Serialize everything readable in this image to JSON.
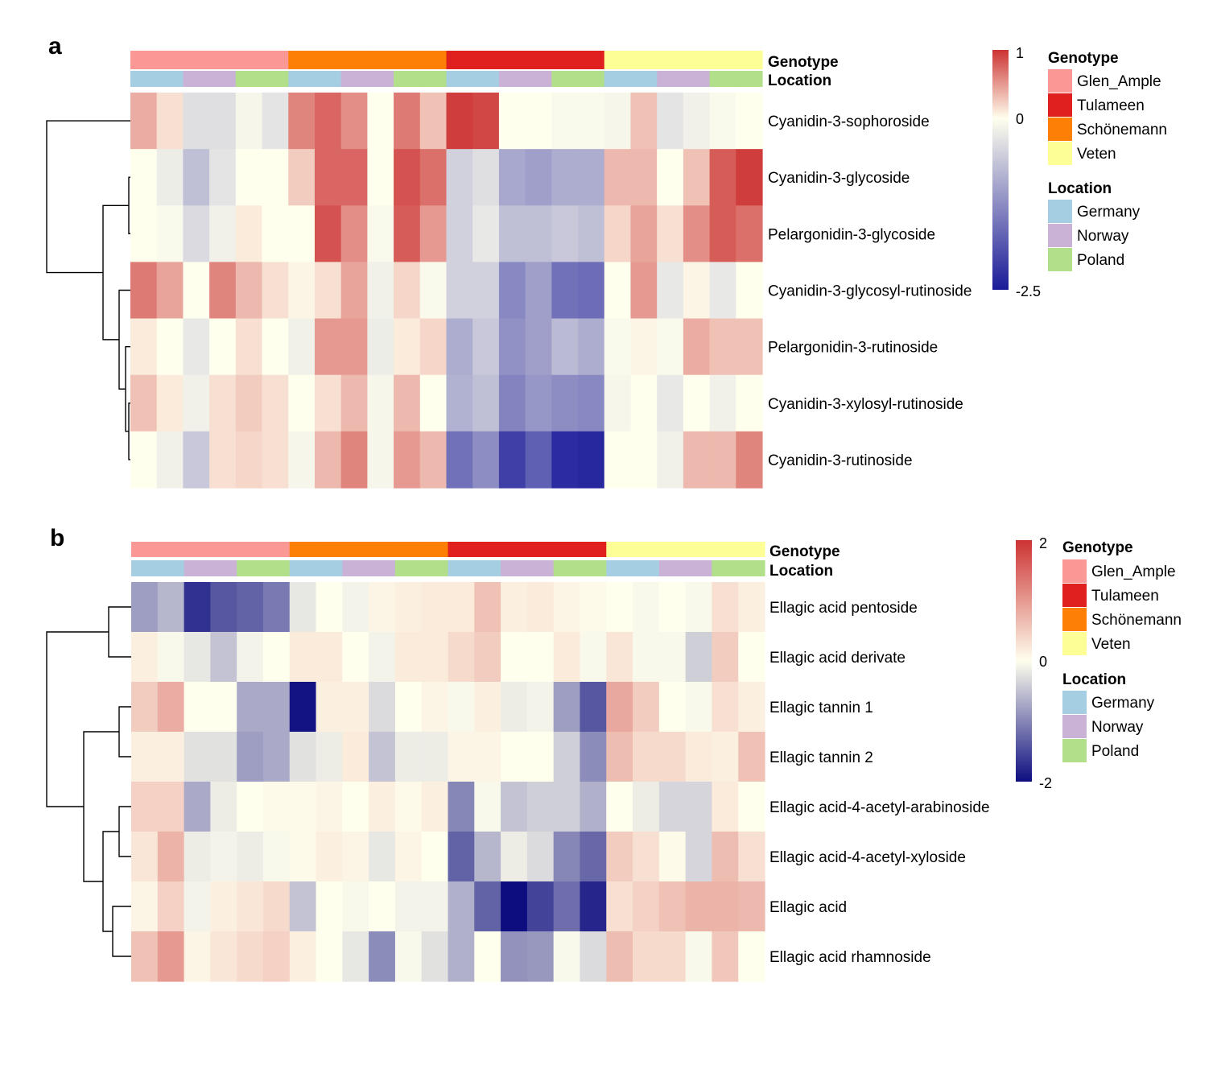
{
  "panels": [
    {
      "label": "a",
      "chart_data": {
        "type": "heatmap",
        "rows": [
          "Cyanidin-3-sophoroside",
          "Cyanidin-3-glycoside",
          "Pelargonidin-3-glycoside",
          "Cyanidin-3-glycosyl-rutinoside",
          "Pelargonidin-3-rutinoside",
          "Cyanidin-3-xylosyl-rutinoside",
          "Cyanidin-3-rutinoside"
        ],
        "column_genotype": [
          "Glen_Ample",
          "Glen_Ample",
          "Glen_Ample",
          "Glen_Ample",
          "Glen_Ample",
          "Glen_Ample",
          "Schönemann",
          "Schönemann",
          "Schönemann",
          "Schönemann",
          "Schönemann",
          "Schönemann",
          "Tulameen",
          "Tulameen",
          "Tulameen",
          "Tulameen",
          "Tulameen",
          "Tulameen",
          "Veten",
          "Veten",
          "Veten",
          "Veten",
          "Veten",
          "Veten"
        ],
        "column_location": [
          "Germany",
          "Germany",
          "Norway",
          "Norway",
          "Poland",
          "Poland",
          "Germany",
          "Germany",
          "Norway",
          "Norway",
          "Poland",
          "Poland",
          "Germany",
          "Germany",
          "Norway",
          "Norway",
          "Poland",
          "Poland",
          "Germany",
          "Germany",
          "Norway",
          "Norway",
          "Poland",
          "Poland"
        ],
        "values": [
          [
            0.4,
            0.15,
            -0.35,
            -0.35,
            -0.1,
            -0.3,
            0.6,
            0.75,
            0.55,
            0.0,
            0.65,
            0.3,
            0.95,
            0.9,
            0.0,
            0.0,
            -0.05,
            -0.05,
            -0.1,
            0.3,
            -0.3,
            -0.15,
            -0.05,
            0.0
          ],
          [
            0.0,
            -0.2,
            -0.7,
            -0.3,
            0.0,
            0.0,
            0.25,
            0.75,
            0.75,
            0.0,
            0.85,
            0.7,
            -0.5,
            -0.35,
            -0.95,
            -1.05,
            -0.9,
            -0.9,
            0.35,
            0.35,
            0.0,
            0.3,
            0.8,
            0.95
          ],
          [
            0.0,
            -0.05,
            -0.4,
            -0.15,
            0.1,
            0.0,
            0.0,
            0.85,
            0.55,
            -0.05,
            0.8,
            0.5,
            -0.5,
            -0.25,
            -0.7,
            -0.7,
            -0.6,
            -0.7,
            0.2,
            0.45,
            0.15,
            0.55,
            0.8,
            0.7
          ],
          [
            0.65,
            0.45,
            0.0,
            0.6,
            0.35,
            0.15,
            0.05,
            0.15,
            0.45,
            -0.15,
            0.2,
            -0.05,
            -0.5,
            -0.5,
            -1.3,
            -1.05,
            -1.55,
            -1.6,
            0.0,
            0.5,
            -0.25,
            0.05,
            -0.25,
            0.0
          ],
          [
            0.1,
            0.0,
            -0.25,
            0.0,
            0.15,
            0.0,
            -0.15,
            0.5,
            0.5,
            -0.2,
            0.1,
            0.2,
            -0.9,
            -0.6,
            -1.2,
            -1.05,
            -0.75,
            -0.9,
            -0.05,
            0.05,
            -0.05,
            0.4,
            0.3,
            0.3
          ],
          [
            0.3,
            0.1,
            -0.15,
            0.15,
            0.25,
            0.15,
            0.0,
            0.15,
            0.35,
            -0.1,
            0.35,
            0.0,
            -0.85,
            -0.7,
            -1.35,
            -1.15,
            -1.25,
            -1.3,
            -0.1,
            0.0,
            -0.25,
            0.0,
            -0.15,
            0.0
          ],
          [
            0.0,
            -0.15,
            -0.6,
            0.15,
            0.2,
            0.15,
            -0.1,
            0.35,
            0.6,
            -0.1,
            0.5,
            0.35,
            -1.55,
            -1.25,
            -2.1,
            -1.75,
            -2.3,
            -2.35,
            0.0,
            0.0,
            -0.15,
            0.35,
            0.35,
            0.6
          ]
        ],
        "scale": {
          "min": -2.5,
          "max": 1,
          "ticks": [
            1,
            0,
            -2.5
          ],
          "tick_labels": [
            "1",
            "0",
            "-2.5"
          ],
          "colors": [
            "#1a1a99",
            "#ffffee",
            "#cc3333"
          ]
        },
        "dendrogram_rows": true,
        "annotation_labels": [
          "Genotype",
          "Location"
        ]
      }
    },
    {
      "label": "b",
      "chart_data": {
        "type": "heatmap",
        "rows": [
          "Ellagic acid pentoside",
          "Ellagic acid derivate",
          "Ellagic tannin 1",
          "Ellagic tannin 2",
          "Ellagic acid-4-acetyl-arabinoside",
          "Ellagic acid-4-acetyl-xyloside",
          "Ellagic acid",
          "Ellagic acid rhamnoside"
        ],
        "column_genotype": [
          "Glen_Ample",
          "Glen_Ample",
          "Glen_Ample",
          "Glen_Ample",
          "Glen_Ample",
          "Glen_Ample",
          "Schönemann",
          "Schönemann",
          "Schönemann",
          "Schönemann",
          "Schönemann",
          "Schönemann",
          "Tulameen",
          "Tulameen",
          "Tulameen",
          "Tulameen",
          "Tulameen",
          "Tulameen",
          "Veten",
          "Veten",
          "Veten",
          "Veten",
          "Veten",
          "Veten"
        ],
        "column_location": [
          "Germany",
          "Germany",
          "Norway",
          "Norway",
          "Poland",
          "Poland",
          "Germany",
          "Germany",
          "Norway",
          "Norway",
          "Poland",
          "Poland",
          "Germany",
          "Germany",
          "Norway",
          "Norway",
          "Poland",
          "Poland",
          "Germany",
          "Germany",
          "Norway",
          "Norway",
          "Poland",
          "Poland"
        ],
        "values": [
          [
            -0.8,
            -0.6,
            -1.7,
            -1.4,
            -1.3,
            -1.1,
            -0.2,
            0.0,
            -0.1,
            0.1,
            0.15,
            0.2,
            0.2,
            0.6,
            0.15,
            0.2,
            0.1,
            0.05,
            0.0,
            -0.05,
            0.0,
            -0.05,
            0.3,
            0.15
          ],
          [
            0.15,
            -0.05,
            -0.2,
            -0.5,
            -0.1,
            0.0,
            0.2,
            0.2,
            0.0,
            -0.1,
            0.2,
            0.2,
            0.35,
            0.5,
            0.0,
            0.0,
            0.2,
            -0.05,
            0.25,
            -0.05,
            -0.05,
            -0.4,
            0.5,
            0.0
          ],
          [
            0.5,
            0.8,
            0.0,
            0.0,
            -0.7,
            -0.7,
            -1.95,
            0.15,
            0.15,
            -0.3,
            0.0,
            0.1,
            -0.05,
            0.15,
            -0.15,
            -0.1,
            -0.8,
            -1.4,
            0.85,
            0.5,
            0.0,
            -0.05,
            0.3,
            0.15
          ],
          [
            0.15,
            0.15,
            -0.25,
            -0.25,
            -0.8,
            -0.7,
            -0.25,
            -0.15,
            0.2,
            -0.5,
            -0.15,
            -0.15,
            0.1,
            0.1,
            0.0,
            0.0,
            -0.4,
            -0.95,
            0.65,
            0.35,
            0.35,
            0.2,
            0.15,
            0.6
          ],
          [
            0.45,
            0.45,
            -0.7,
            -0.15,
            0.0,
            0.05,
            0.05,
            0.1,
            0.0,
            0.15,
            0.05,
            0.15,
            -1.0,
            -0.05,
            -0.5,
            -0.4,
            -0.4,
            -0.65,
            0.0,
            -0.15,
            -0.35,
            -0.35,
            0.2,
            0.0
          ],
          [
            0.25,
            0.75,
            -0.15,
            -0.1,
            -0.15,
            -0.05,
            0.05,
            0.15,
            0.1,
            -0.2,
            0.1,
            0.0,
            -1.3,
            -0.6,
            -0.15,
            -0.3,
            -1.0,
            -1.25,
            0.5,
            0.3,
            0.05,
            -0.35,
            0.65,
            0.3
          ],
          [
            0.1,
            0.45,
            -0.1,
            0.15,
            0.25,
            0.35,
            -0.5,
            0.0,
            -0.05,
            0.0,
            -0.1,
            -0.1,
            -0.65,
            -1.3,
            -2.0,
            -1.55,
            -1.2,
            -1.8,
            0.3,
            0.45,
            0.6,
            0.75,
            0.75,
            0.7
          ],
          [
            0.6,
            1.0,
            0.1,
            0.25,
            0.35,
            0.45,
            0.15,
            0.0,
            -0.2,
            -0.95,
            -0.05,
            -0.25,
            -0.65,
            0.0,
            -0.9,
            -0.85,
            -0.05,
            -0.3,
            0.65,
            0.35,
            0.35,
            -0.05,
            0.55,
            0.0
          ]
        ],
        "scale": {
          "min": -2,
          "max": 2,
          "ticks": [
            2,
            0,
            -2
          ],
          "tick_labels": [
            "2",
            "0",
            "-2"
          ],
          "colors": [
            "#0d0d80",
            "#ffffee",
            "#cc3333"
          ]
        },
        "dendrogram_rows": true,
        "annotation_labels": [
          "Genotype",
          "Location"
        ]
      }
    }
  ],
  "legend": {
    "genotype_title": "Genotype",
    "genotype": [
      {
        "name": "Glen_Ample",
        "color": "#fa9896"
      },
      {
        "name": "Tulameen",
        "color": "#e0201e"
      },
      {
        "name": "Schönemann",
        "color": "#fd7f06"
      },
      {
        "name": "Veten",
        "color": "#fefe96"
      }
    ],
    "location_title": "Location",
    "location": [
      {
        "name": "Germany",
        "color": "#a6cee3"
      },
      {
        "name": "Norway",
        "color": "#cab2d6"
      },
      {
        "name": "Poland",
        "color": "#b2df8a"
      }
    ]
  }
}
